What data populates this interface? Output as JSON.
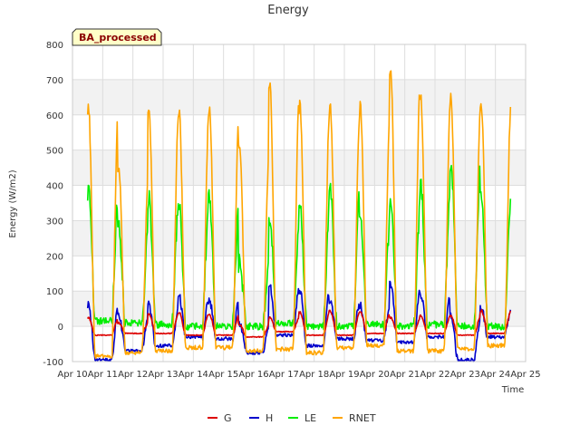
{
  "chart_data": {
    "type": "line",
    "title": "Energy",
    "xlabel": "Time",
    "ylabel": "Energy (W/m2)",
    "badge": "BA_processed",
    "x_ticks": [
      "Apr 10",
      "Apr 11",
      "Apr 12",
      "Apr 13",
      "Apr 14",
      "Apr 15",
      "Apr 16",
      "Apr 17",
      "Apr 18",
      "Apr 19",
      "Apr 20",
      "Apr 21",
      "Apr 22",
      "Apr 23",
      "Apr 24",
      "Apr 25"
    ],
    "y_ticks": [
      "-100",
      "0",
      "100",
      "200",
      "300",
      "400",
      "500",
      "600",
      "700",
      "800"
    ],
    "xlim_days": [
      10,
      25
    ],
    "ylim": [
      -100,
      800
    ],
    "grid": true,
    "legend_position": "bottom",
    "series": [
      {
        "name": "G",
        "color": "#dd0000",
        "daily_peak": [
          25,
          10,
          35,
          40,
          35,
          5,
          25,
          40,
          45,
          40,
          25,
          30,
          30,
          45
        ],
        "daily_min": [
          -25,
          -20,
          -20,
          -25,
          -25,
          -30,
          -15,
          -25,
          -25,
          -20,
          -20,
          -20,
          -25,
          -20
        ]
      },
      {
        "name": "H",
        "color": "#0000cc",
        "daily_peak": [
          65,
          35,
          60,
          85,
          75,
          10,
          115,
          105,
          75,
          60,
          120,
          90,
          30,
          50
        ],
        "daily_min": [
          -95,
          -70,
          -55,
          -30,
          -35,
          -75,
          -25,
          -55,
          -35,
          -40,
          -45,
          -30,
          -95,
          -30
        ]
      },
      {
        "name": "LE",
        "color": "#00ee00",
        "daily_peak": [
          385,
          280,
          365,
          350,
          365,
          180,
          305,
          345,
          405,
          300,
          345,
          400,
          470,
          365
        ],
        "daily_min": [
          15,
          10,
          5,
          0,
          0,
          0,
          10,
          0,
          0,
          5,
          0,
          5,
          0,
          0
        ]
      },
      {
        "name": "RNET",
        "color": "#ffa500",
        "daily_peak": [
          625,
          450,
          625,
          610,
          620,
          515,
          695,
          630,
          630,
          625,
          730,
          650,
          650,
          635
        ],
        "daily_min": [
          -85,
          -75,
          -70,
          -60,
          -60,
          -70,
          -65,
          -75,
          -60,
          -55,
          -70,
          -70,
          -65,
          -55
        ]
      }
    ]
  }
}
